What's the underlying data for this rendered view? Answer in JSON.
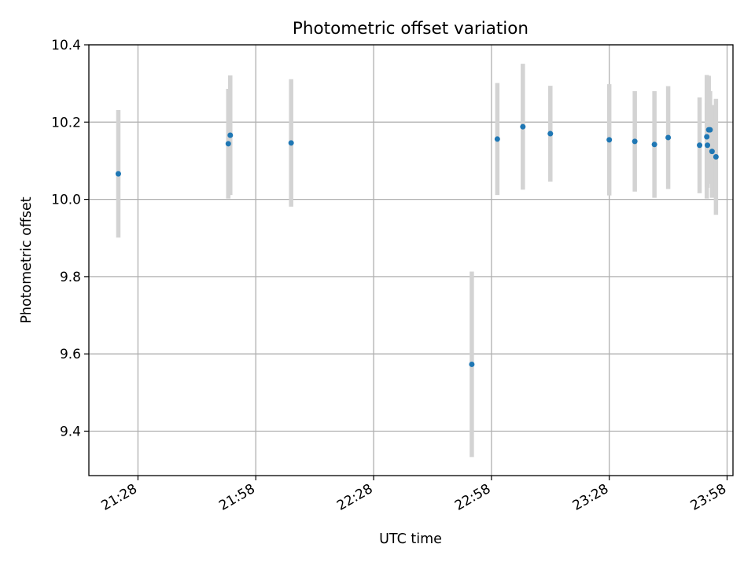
{
  "chart_data": {
    "type": "scatter",
    "title": "Photometric offset variation",
    "xlabel": "UTC time",
    "ylabel": "Photometric offset",
    "grid": true,
    "x_ticks": [
      "21:28",
      "21:58",
      "22:28",
      "22:58",
      "23:28",
      "23:58"
    ],
    "y_ticks": [
      "9.4",
      "9.6",
      "9.8",
      "10.0",
      "10.2",
      "10.4"
    ],
    "xlim": [
      "21:15:30",
      "23:59:30"
    ],
    "ylim": [
      9.285,
      10.4
    ],
    "colors": {
      "points": "#1f77b4",
      "error_bars": "#d3d3d3",
      "grid": "#b0b0b0"
    },
    "series": [
      {
        "points": [
          {
            "x": "21:23:00",
            "y": 10.066,
            "err": 0.165
          },
          {
            "x": "21:51:00",
            "y": 10.144,
            "err": 0.142
          },
          {
            "x": "21:51:30",
            "y": 10.166,
            "err": 0.155
          },
          {
            "x": "22:07:00",
            "y": 10.146,
            "err": 0.165
          },
          {
            "x": "22:53:00",
            "y": 9.573,
            "err": 0.24
          },
          {
            "x": "22:59:30",
            "y": 10.156,
            "err": 0.145
          },
          {
            "x": "23:06:00",
            "y": 10.188,
            "err": 0.163
          },
          {
            "x": "23:13:00",
            "y": 10.17,
            "err": 0.124
          },
          {
            "x": "23:28:00",
            "y": 10.154,
            "err": 0.144
          },
          {
            "x": "23:34:30",
            "y": 10.15,
            "err": 0.13
          },
          {
            "x": "23:39:30",
            "y": 10.142,
            "err": 0.138
          },
          {
            "x": "23:43:00",
            "y": 10.16,
            "err": 0.133
          },
          {
            "x": "23:51:00",
            "y": 10.14,
            "err": 0.124
          },
          {
            "x": "23:52:50",
            "y": 10.162,
            "err": 0.16
          },
          {
            "x": "23:53:00",
            "y": 10.14,
            "err": 0.11
          },
          {
            "x": "23:53:20",
            "y": 10.18,
            "err": 0.14
          },
          {
            "x": "23:53:40",
            "y": 10.18,
            "err": 0.1
          },
          {
            "x": "23:54:10",
            "y": 10.124,
            "err": 0.12
          },
          {
            "x": "23:55:10",
            "y": 10.11,
            "err": 0.15
          }
        ]
      }
    ]
  }
}
